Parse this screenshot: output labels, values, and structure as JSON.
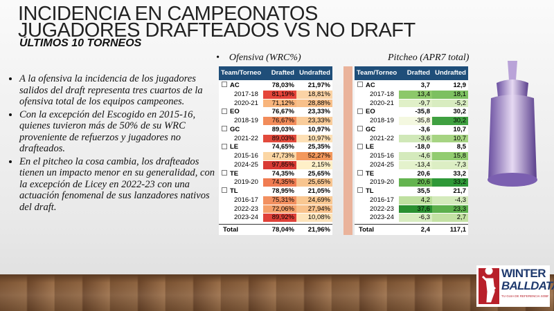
{
  "header": {
    "title_lines": [
      "INCIDENCIA EN CAMPEONATOS",
      "JUGADORES DRAFTEADOS VS NO DRAFT"
    ],
    "subtitle": "ÚLTIMOS 10 TORNEOS"
  },
  "bullets": [
    "A la ofensiva la incidencia de los jugadores salidos del draft representa tres cuartos de la ofensiva total de los equipos campeones.",
    "Con la excepción del Escogido en 2015-16, quienes tuvieron más de 50% de su WRC proveniente de refuerzos y jugadores no drafteados.",
    "En el pitcheo la cosa cambia, los drafteados tienen un impacto menor en su generalidad, con la excepción de Licey en 2022-23 con una actuación fenomenal de sus lanzadores nativos del draft."
  ],
  "tables": [
    {
      "heading": "Ofensiva (WRC%)",
      "columns": [
        "Team/Torneo",
        "Drafted",
        "Undrafted"
      ],
      "rows": [
        {
          "label": "AC",
          "values": [
            "78,03%",
            "21,97%"
          ],
          "group": true
        },
        {
          "label": "2017-18",
          "values": [
            "81,19%",
            "18,81%"
          ],
          "colors": [
            "#e5453a",
            "#fbd3a5"
          ]
        },
        {
          "label": "2020-21",
          "values": [
            "71,12%",
            "28,88%"
          ],
          "colors": [
            "#f8b57c",
            "#f8c08a"
          ]
        },
        {
          "label": "EO",
          "values": [
            "76,67%",
            "23,33%"
          ],
          "group": true
        },
        {
          "label": "2018-19",
          "values": [
            "76,67%",
            "23,33%"
          ],
          "colors": [
            "#f28c5a",
            "#f9cc9a"
          ]
        },
        {
          "label": "GC",
          "values": [
            "89,03%",
            "10,97%"
          ],
          "group": true
        },
        {
          "label": "2021-22",
          "values": [
            "89,03%",
            "10,97%"
          ],
          "colors": [
            "#e24a3c",
            "#fde0b6"
          ]
        },
        {
          "label": "LE",
          "values": [
            "74,65%",
            "25,35%"
          ],
          "group": true
        },
        {
          "label": "2015-16",
          "values": [
            "47,73%",
            "52,27%"
          ],
          "colors": [
            "#fbd6a4",
            "#f3985c"
          ]
        },
        {
          "label": "2024-25",
          "values": [
            "97,85%",
            "2,15%"
          ],
          "colors": [
            "#d93a34",
            "#fff0c8"
          ]
        },
        {
          "label": "TE",
          "values": [
            "74,35%",
            "25,65%"
          ],
          "group": true
        },
        {
          "label": "2019-20",
          "values": [
            "74,35%",
            "25,65%"
          ],
          "colors": [
            "#f07c52",
            "#f8c590"
          ]
        },
        {
          "label": "TL",
          "values": [
            "78,95%",
            "21,05%"
          ],
          "group": true
        },
        {
          "label": "2016-17",
          "values": [
            "75,31%",
            "24,69%"
          ],
          "colors": [
            "#f29060",
            "#f9c892"
          ]
        },
        {
          "label": "2022-23",
          "values": [
            "72,06%",
            "27,94%"
          ],
          "colors": [
            "#f5a06a",
            "#f8c28c"
          ]
        },
        {
          "label": "2023-24",
          "values": [
            "89,92%",
            "10,08%"
          ],
          "colors": [
            "#e04038",
            "#fde4bb"
          ]
        }
      ],
      "total": {
        "label": "Total",
        "values": [
          "78,04%",
          "21,96%"
        ]
      }
    },
    {
      "heading": "Pitcheo (APR7 total)",
      "columns": [
        "Team/Torneo",
        "Drafted",
        "Undrafted"
      ],
      "rows": [
        {
          "label": "AC",
          "values": [
            "3,7",
            "12,9"
          ],
          "group": true
        },
        {
          "label": "2017-18",
          "values": [
            "13,4",
            "18,1"
          ],
          "colors": [
            "#8cc86a",
            "#7cc060"
          ]
        },
        {
          "label": "2020-21",
          "values": [
            "-9,7",
            "-5,2"
          ],
          "colors": [
            "#e0f0c8",
            "#d8ecc0"
          ]
        },
        {
          "label": "EO",
          "values": [
            "-35,8",
            "30,2"
          ],
          "group": true
        },
        {
          "label": "2018-19",
          "values": [
            "-35,8",
            "30,2"
          ],
          "colors": [
            "#f4f8e0",
            "#3fa040"
          ]
        },
        {
          "label": "GC",
          "values": [
            "-3,6",
            "10,7"
          ],
          "group": true
        },
        {
          "label": "2021-22",
          "values": [
            "-3,6",
            "10,7"
          ],
          "colors": [
            "#d0e8b8",
            "#a6d482"
          ]
        },
        {
          "label": "LE",
          "values": [
            "-18,0",
            "8,5"
          ],
          "group": true
        },
        {
          "label": "2015-16",
          "values": [
            "-4,6",
            "15,8"
          ],
          "colors": [
            "#d4eabc",
            "#92cc70"
          ]
        },
        {
          "label": "2024-25",
          "values": [
            "-13,4",
            "-7,3"
          ],
          "colors": [
            "#e4f2cc",
            "#dceec4"
          ]
        },
        {
          "label": "TE",
          "values": [
            "20,6",
            "33,2"
          ],
          "group": true
        },
        {
          "label": "2019-20",
          "values": [
            "20,6",
            "33,2"
          ],
          "colors": [
            "#64b450",
            "#2e9838"
          ]
        },
        {
          "label": "TL",
          "values": [
            "35,5",
            "21,7"
          ],
          "group": true
        },
        {
          "label": "2016-17",
          "values": [
            "4,2",
            "-4,3"
          ],
          "colors": [
            "#bfe0a0",
            "#d4eabc"
          ]
        },
        {
          "label": "2022-23",
          "values": [
            "37,6",
            "23,3"
          ],
          "colors": [
            "#2a9030",
            "#5cb04c"
          ]
        },
        {
          "label": "2023-24",
          "values": [
            "-6,3",
            "2,7"
          ],
          "colors": [
            "#d8ecc0",
            "#c4e2a4"
          ]
        }
      ],
      "total": {
        "label": "Total",
        "values": [
          "2,4",
          "117,1"
        ]
      }
    }
  ],
  "logo": {
    "line1": "WINTER",
    "line2": "BALLDATA",
    "tagline": "TU GUIA DE REFERENCIA SOBRE BEISBOL"
  }
}
